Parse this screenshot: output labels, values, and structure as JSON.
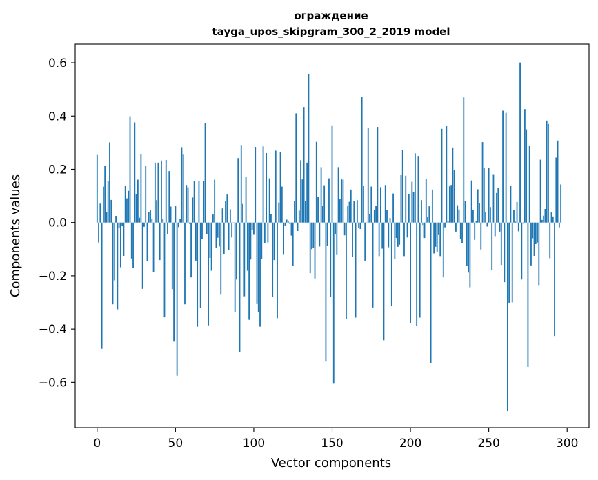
{
  "chart_data": {
    "type": "bar",
    "title": "ограждение",
    "subtitle": "tayga_upos_skipgram_300_2_2019 model",
    "xlabel": "Vector components",
    "ylabel": "Components values",
    "xlim": [
      -14,
      314
    ],
    "ylim": [
      -0.77,
      0.67
    ],
    "xticks": [
      0,
      50,
      100,
      150,
      200,
      250,
      300
    ],
    "yticks": [
      -0.6,
      -0.4,
      -0.2,
      0.0,
      0.2,
      0.4,
      0.6
    ],
    "ytick_labels": [
      "−0.6",
      "−0.4",
      "−0.2",
      "0.0",
      "0.2",
      "0.4",
      "0.6"
    ],
    "bar_color": "#1f77b4",
    "x": "0..299 (component index)",
    "values": [
      0.254,
      -0.075,
      0.071,
      -0.474,
      0.135,
      0.212,
      0.038,
      0.155,
      0.301,
      0.085,
      -0.307,
      -0.217,
      0.025,
      -0.326,
      -0.019,
      -0.168,
      -0.014,
      -0.125,
      0.138,
      0.091,
      0.119,
      0.399,
      -0.135,
      -0.171,
      0.376,
      0.108,
      0.161,
      0.018,
      0.257,
      -0.249,
      -0.016,
      0.212,
      -0.145,
      0.039,
      0.046,
      0.015,
      -0.187,
      0.225,
      0.084,
      0.225,
      -0.141,
      0.233,
      0.014,
      -0.356,
      0.235,
      -0.043,
      0.193,
      0.06,
      -0.25,
      -0.447,
      0.064,
      -0.575,
      -0.017,
      0.013,
      0.283,
      0.255,
      -0.307,
      0.141,
      0.132,
      -0.005,
      -0.206,
      0.094,
      0.157,
      -0.143,
      -0.391,
      0.156,
      -0.32,
      -0.061,
      0.155,
      0.374,
      -0.044,
      -0.386,
      -0.133,
      -0.181,
      0.03,
      0.161,
      -0.094,
      -0.057,
      -0.09,
      -0.271,
      0.053,
      -0.12,
      0.081,
      0.105,
      -0.102,
      0.05,
      -0.056,
      -0.003,
      -0.337,
      -0.214,
      0.242,
      -0.487,
      0.291,
      0.07,
      -0.277,
      0.172,
      -0.181,
      -0.365,
      -0.139,
      -0.029,
      -0.046,
      0.284,
      -0.306,
      -0.337,
      -0.391,
      -0.136,
      0.286,
      -0.076,
      0.261,
      -0.075,
      0.166,
      0.032,
      -0.279,
      -0.141,
      0.27,
      -0.359,
      0.075,
      0.266,
      0.135,
      -0.121,
      -0.011,
      0.011,
      0.004,
      -0.005,
      -0.049,
      -0.163,
      0.08,
      0.41,
      -0.032,
      0.045,
      0.234,
      0.162,
      0.434,
      0.08,
      0.225,
      0.557,
      -0.19,
      -0.1,
      -0.096,
      -0.21,
      0.303,
      0.095,
      -0.09,
      0.208,
      0.062,
      0.14,
      -0.522,
      -0.088,
      0.166,
      -0.28,
      0.365,
      -0.605,
      -0.045,
      -0.122,
      0.208,
      0.089,
      0.162,
      0.161,
      -0.048,
      -0.361,
      0.062,
      0.078,
      0.124,
      -0.13,
      0.08,
      -0.357,
      0.084,
      -0.021,
      -0.024,
      0.471,
      0.138,
      -0.143,
      -0.003,
      0.356,
      0.032,
      0.135,
      -0.319,
      0.046,
      0.063,
      0.359,
      -0.126,
      0.133,
      -0.098,
      -0.442,
      0.141,
      0.047,
      -0.093,
      0.017,
      -0.313,
      0.109,
      -0.136,
      -0.058,
      -0.091,
      -0.083,
      0.178,
      0.273,
      -0.126,
      0.176,
      -0.056,
      0.107,
      -0.378,
      0.153,
      0.115,
      0.26,
      -0.388,
      0.25,
      -0.357,
      0.084,
      -0.009,
      -0.058,
      0.163,
      0.022,
      0.061,
      -0.527,
      0.124,
      -0.116,
      -0.091,
      -0.111,
      -0.047,
      -0.126,
      0.352,
      -0.206,
      -0.018,
      0.364,
      0.007,
      0.136,
      0.141,
      0.282,
      0.196,
      -0.034,
      0.065,
      0.049,
      -0.062,
      -0.076,
      0.47,
      0.082,
      -0.162,
      -0.188,
      -0.243,
      0.158,
      0.047,
      -0.065,
      0.007,
      0.125,
      0.072,
      -0.101,
      0.302,
      0.205,
      0.04,
      -0.015,
      0.206,
      0.058,
      -0.178,
      0.179,
      -0.051,
      0.111,
      0.131,
      -0.034,
      -0.159,
      0.42,
      -0.224,
      0.412,
      -0.708,
      -0.301,
      0.137,
      -0.3,
      0.047,
      0.003,
      0.077,
      -0.033,
      0.601,
      -0.214,
      -0.004,
      0.426,
      0.35,
      -0.542,
      0.288,
      -0.161,
      -0.059,
      -0.125,
      -0.081,
      -0.075,
      -0.235,
      0.236,
      0.01,
      0.026,
      0.051,
      0.383,
      0.37,
      -0.134,
      0.038,
      0.023,
      -0.426,
      0.244,
      0.308,
      -0.018,
      0.143
    ]
  }
}
